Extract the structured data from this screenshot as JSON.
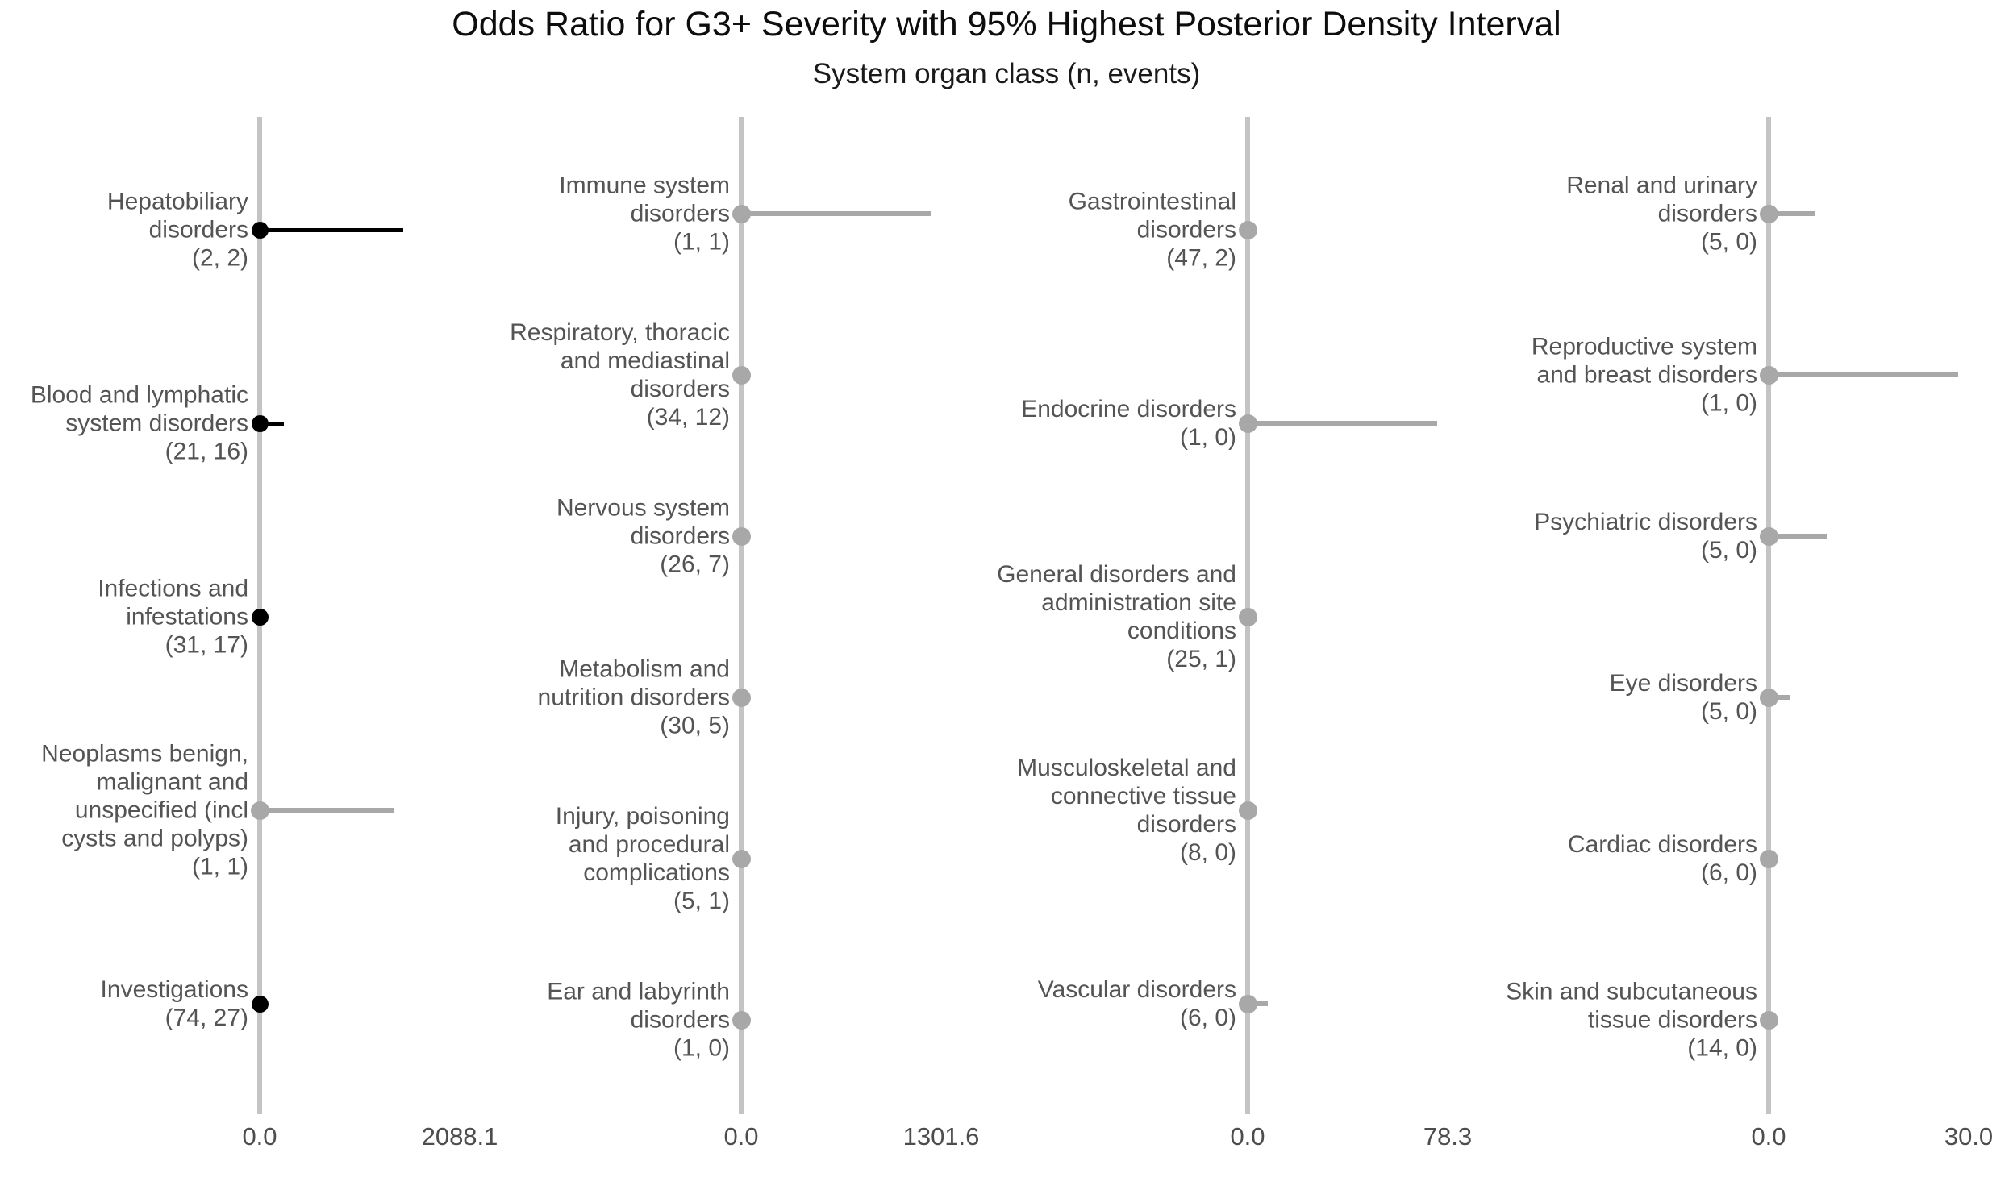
{
  "title": "Odds Ratio for G3+ Severity with 95% Highest Posterior Density Interval",
  "subtitle": "System organ class (n, events)",
  "colors": {
    "emphasis_black": "#000000",
    "nonsig_gray": "#a8a8a8",
    "axis_line_gray": "#c4c4c4",
    "label_text_gray": "#545454",
    "tick_text_gray": "#4d4d4d",
    "background": "#ffffff"
  },
  "chart_data": {
    "type": "scatter",
    "variant": "forest-plot-faceted",
    "x_axis_note": "Odds ratio with 95% HPD interval; all point estimates drawn at 0.0 on each panel axis; intervals extend rightward",
    "legend": "none",
    "grid": "off",
    "panels": [
      {
        "x_ticks": [
          "0.0",
          "2088.1"
        ],
        "x_tick_values": [
          0,
          2088.1
        ],
        "axis_max": 2088.1,
        "rows": [
          {
            "label": "Hepatobiliary\ndisorders",
            "counts": "(2, 2)",
            "n": 2,
            "events": 2,
            "or_point": 0.0,
            "hpd_lower": 0.0,
            "hpd_upper": 1580,
            "emphasis": "black"
          },
          {
            "label": "Blood and lymphatic\nsystem disorders",
            "counts": "(21, 16)",
            "n": 21,
            "events": 16,
            "or_point": 0.0,
            "hpd_lower": 0.0,
            "hpd_upper": 270,
            "emphasis": "black"
          },
          {
            "label": "Infections and\ninfestations",
            "counts": "(31, 17)",
            "n": 31,
            "events": 17,
            "or_point": 0.0,
            "hpd_lower": 0.0,
            "hpd_upper": 0,
            "emphasis": "black"
          },
          {
            "label": "Neoplasms benign,\nmalignant and\nunspecified (incl\ncysts and polyps)",
            "counts": "(1, 1)",
            "n": 1,
            "events": 1,
            "or_point": 0.0,
            "hpd_lower": 0.0,
            "hpd_upper": 1480,
            "emphasis": "gray"
          },
          {
            "label": "Investigations",
            "counts": "(74, 27)",
            "n": 74,
            "events": 27,
            "or_point": 0.0,
            "hpd_lower": 0.0,
            "hpd_upper": 0,
            "emphasis": "black"
          }
        ]
      },
      {
        "x_ticks": [
          "0.0",
          "1301.6"
        ],
        "x_tick_values": [
          0,
          1301.6
        ],
        "axis_max": 1301.6,
        "rows": [
          {
            "label": "Immune system\ndisorders",
            "counts": "(1, 1)",
            "n": 1,
            "events": 1,
            "or_point": 0.0,
            "hpd_lower": 0.0,
            "hpd_upper": 1301.6,
            "emphasis": "gray"
          },
          {
            "label": "Respiratory, thoracic\nand mediastinal\ndisorders",
            "counts": "(34, 12)",
            "n": 34,
            "events": 12,
            "or_point": 0.0,
            "hpd_lower": 0.0,
            "hpd_upper": 0,
            "emphasis": "gray"
          },
          {
            "label": "Nervous system\ndisorders",
            "counts": "(26, 7)",
            "n": 26,
            "events": 7,
            "or_point": 0.0,
            "hpd_lower": 0.0,
            "hpd_upper": 0,
            "emphasis": "gray"
          },
          {
            "label": "Metabolism and\nnutrition disorders",
            "counts": "(30, 5)",
            "n": 30,
            "events": 5,
            "or_point": 0.0,
            "hpd_lower": 0.0,
            "hpd_upper": 0,
            "emphasis": "gray"
          },
          {
            "label": "Injury, poisoning\nand procedural\ncomplications",
            "counts": "(5, 1)",
            "n": 5,
            "events": 1,
            "or_point": 0.0,
            "hpd_lower": 0.0,
            "hpd_upper": 0,
            "emphasis": "gray"
          },
          {
            "label": "Ear and labyrinth\ndisorders",
            "counts": "(1, 0)",
            "n": 1,
            "events": 0,
            "or_point": 0.0,
            "hpd_lower": 0.0,
            "hpd_upper": 0,
            "emphasis": "gray"
          }
        ]
      },
      {
        "x_ticks": [
          "0.0",
          "78.3"
        ],
        "x_tick_values": [
          0,
          78.3
        ],
        "axis_max": 78.3,
        "rows": [
          {
            "label": "Gastrointestinal\ndisorders",
            "counts": "(47, 2)",
            "n": 47,
            "events": 2,
            "or_point": 0.0,
            "hpd_lower": 0.0,
            "hpd_upper": 0,
            "emphasis": "gray"
          },
          {
            "label": "Endocrine disorders",
            "counts": "(1, 0)",
            "n": 1,
            "events": 0,
            "or_point": 0.0,
            "hpd_lower": 0.0,
            "hpd_upper": 78.3,
            "emphasis": "gray"
          },
          {
            "label": "General disorders and\nadministration site\nconditions",
            "counts": "(25, 1)",
            "n": 25,
            "events": 1,
            "or_point": 0.0,
            "hpd_lower": 0.0,
            "hpd_upper": 0,
            "emphasis": "gray"
          },
          {
            "label": "Musculoskeletal and\nconnective tissue\ndisorders",
            "counts": "(8, 0)",
            "n": 8,
            "events": 0,
            "or_point": 0.0,
            "hpd_lower": 0.0,
            "hpd_upper": 0,
            "emphasis": "gray"
          },
          {
            "label": "Vascular disorders",
            "counts": "(6, 0)",
            "n": 6,
            "events": 0,
            "or_point": 0.0,
            "hpd_lower": 0.0,
            "hpd_upper": 8.3,
            "emphasis": "gray"
          }
        ]
      },
      {
        "x_ticks": [
          "0.0",
          "30.0"
        ],
        "x_tick_values": [
          0,
          30.0
        ],
        "axis_max": 30.0,
        "rows": [
          {
            "label": "Renal and urinary\ndisorders",
            "counts": "(5, 0)",
            "n": 5,
            "events": 0,
            "or_point": 0.0,
            "hpd_lower": 0.0,
            "hpd_upper": 7.4,
            "emphasis": "gray"
          },
          {
            "label": "Reproductive system\nand breast disorders",
            "counts": "(1, 0)",
            "n": 1,
            "events": 0,
            "or_point": 0.0,
            "hpd_lower": 0.0,
            "hpd_upper": 30.0,
            "emphasis": "gray"
          },
          {
            "label": "Psychiatric disorders",
            "counts": "(5, 0)",
            "n": 5,
            "events": 0,
            "or_point": 0.0,
            "hpd_lower": 0.0,
            "hpd_upper": 9.2,
            "emphasis": "gray"
          },
          {
            "label": "Eye disorders",
            "counts": "(5, 0)",
            "n": 5,
            "events": 0,
            "or_point": 0.0,
            "hpd_lower": 0.0,
            "hpd_upper": 3.4,
            "emphasis": "gray"
          },
          {
            "label": "Cardiac disorders",
            "counts": "(6, 0)",
            "n": 6,
            "events": 0,
            "or_point": 0.0,
            "hpd_lower": 0.0,
            "hpd_upper": 0,
            "emphasis": "gray"
          },
          {
            "label": "Skin and subcutaneous\ntissue disorders",
            "counts": "(14, 0)",
            "n": 14,
            "events": 0,
            "or_point": 0.0,
            "hpd_lower": 0.0,
            "hpd_upper": 0,
            "emphasis": "gray"
          }
        ]
      }
    ]
  }
}
